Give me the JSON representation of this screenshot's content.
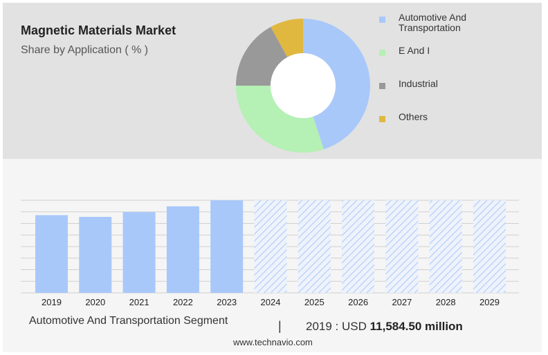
{
  "title": "Magnetic Materials Market",
  "subtitle": "Share by Application ( % )",
  "chart_data": [
    {
      "type": "pie",
      "variant": "donut",
      "categories": [
        "Automotive And Transportation",
        "E And I",
        "Industrial",
        "Others"
      ],
      "values": [
        45,
        30,
        17,
        8
      ],
      "colors": [
        "#a8c8fa",
        "#b5f0b5",
        "#999999",
        "#e0b840"
      ],
      "legend_position": "right"
    },
    {
      "type": "bar",
      "categories": [
        "2019",
        "2020",
        "2021",
        "2022",
        "2023",
        "2024",
        "2025",
        "2026",
        "2027",
        "2028",
        "2029"
      ],
      "series": [
        {
          "values": [
            11584.5,
            11330,
            12040,
            12900,
            13800,
            null,
            null,
            null,
            null,
            null,
            null
          ]
        }
      ],
      "forecast_categories": [
        "2024",
        "2025",
        "2026",
        "2027",
        "2028",
        "2029"
      ],
      "ylim": [
        0,
        13800
      ],
      "grid": true,
      "colors": {
        "bar": "#a8c8fa",
        "forecast": "#a8c8fa",
        "grid": "#cfcfcf"
      }
    }
  ],
  "footer": {
    "segment": "Automotive And Transportation Segment",
    "separator": "|",
    "value_prefix": "2019 : USD",
    "value": "11,584.50 million",
    "site": "www.technavio.com"
  }
}
